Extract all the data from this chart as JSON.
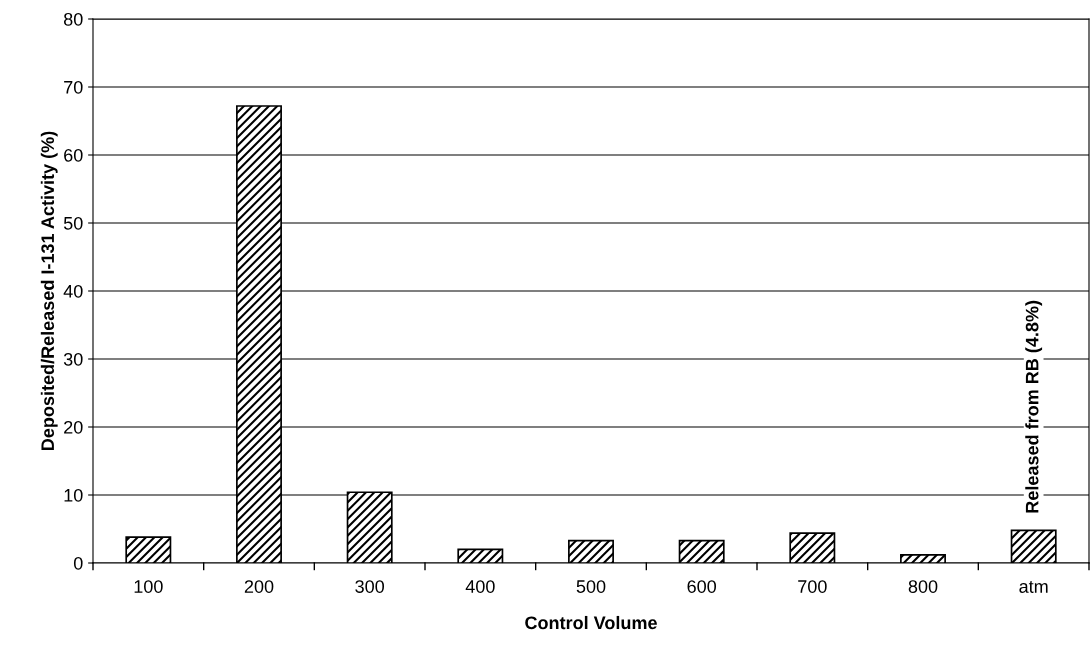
{
  "chart_data": {
    "type": "bar",
    "xlabel": "Control Volume",
    "ylabel": "Deposited/Released I-131 Activity (%)",
    "categories": [
      "100",
      "200",
      "300",
      "400",
      "500",
      "600",
      "700",
      "800",
      "atm"
    ],
    "values": [
      3.8,
      67.2,
      10.4,
      2.0,
      3.3,
      3.3,
      4.4,
      1.2,
      4.8
    ],
    "color": "#000000",
    "ylim": [
      0,
      80
    ],
    "yticks": [
      0,
      10,
      20,
      30,
      40,
      50,
      60,
      70,
      80
    ],
    "grid": "y",
    "legend": false,
    "annotations": [
      {
        "text": "Released from RB (4.8%)",
        "x": "atm",
        "y": 4.8
      }
    ]
  }
}
